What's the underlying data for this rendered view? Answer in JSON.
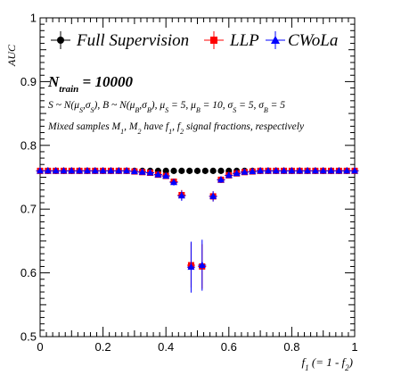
{
  "chart_data": {
    "type": "scatter",
    "title": "",
    "xlabel": "f_1 (= 1 - f_2)",
    "ylabel": "AUC",
    "xlim": [
      0,
      1
    ],
    "ylim": [
      0.5,
      1.0
    ],
    "x_ticks": [
      "0",
      "0.2",
      "0.4",
      "0.6",
      "0.8",
      "1"
    ],
    "y_ticks": [
      "0.5",
      "0.6",
      "0.7",
      "0.8",
      "0.9",
      "1"
    ],
    "grid": false,
    "legend_position": "top",
    "annotations": {
      "n_train": "N_train = 10000",
      "model": "S ~ N(μ_S,σ_S), B ~ N(μ_B,σ_B), μ_S = 5, μ_B = 10, σ_S = 5, σ_B = 5",
      "mixed": "Mixed samples M_1, M_2 have f_1, f_2 signal fractions, respectively"
    },
    "x": [
      0.0,
      0.0333,
      0.0667,
      0.1,
      0.1333,
      0.1667,
      0.2,
      0.2333,
      0.2667,
      0.3,
      0.3333,
      0.3667,
      0.4,
      0.4333,
      0.4667,
      0.5,
      0.5333,
      0.5667,
      0.6,
      0.6333,
      0.6667,
      0.7,
      0.7333,
      0.7667,
      0.8,
      0.8333,
      0.8667,
      0.9,
      0.9333,
      0.9667,
      1.0
    ],
    "series": [
      {
        "name": "Full Supervision",
        "color": "#000000",
        "marker": "circle",
        "points": [
          {
            "x": 0.0,
            "y": 0.76
          },
          {
            "x": 0.025,
            "y": 0.76
          },
          {
            "x": 0.05,
            "y": 0.76
          },
          {
            "x": 0.075,
            "y": 0.76
          },
          {
            "x": 0.1,
            "y": 0.76
          },
          {
            "x": 0.125,
            "y": 0.76
          },
          {
            "x": 0.15,
            "y": 0.76
          },
          {
            "x": 0.175,
            "y": 0.76
          },
          {
            "x": 0.2,
            "y": 0.76
          },
          {
            "x": 0.225,
            "y": 0.76
          },
          {
            "x": 0.25,
            "y": 0.76
          },
          {
            "x": 0.275,
            "y": 0.76
          },
          {
            "x": 0.3,
            "y": 0.76
          },
          {
            "x": 0.325,
            "y": 0.76
          },
          {
            "x": 0.35,
            "y": 0.76
          },
          {
            "x": 0.375,
            "y": 0.76
          },
          {
            "x": 0.4,
            "y": 0.76
          },
          {
            "x": 0.425,
            "y": 0.76
          },
          {
            "x": 0.45,
            "y": 0.76
          },
          {
            "x": 0.475,
            "y": 0.76
          },
          {
            "x": 0.5,
            "y": 0.76
          },
          {
            "x": 0.525,
            "y": 0.76
          },
          {
            "x": 0.55,
            "y": 0.76
          },
          {
            "x": 0.575,
            "y": 0.76
          },
          {
            "x": 0.6,
            "y": 0.76
          },
          {
            "x": 0.625,
            "y": 0.76
          },
          {
            "x": 0.65,
            "y": 0.76
          },
          {
            "x": 0.675,
            "y": 0.76
          },
          {
            "x": 0.7,
            "y": 0.76
          },
          {
            "x": 0.725,
            "y": 0.76
          },
          {
            "x": 0.75,
            "y": 0.76
          },
          {
            "x": 0.775,
            "y": 0.76
          },
          {
            "x": 0.8,
            "y": 0.76
          },
          {
            "x": 0.825,
            "y": 0.76
          },
          {
            "x": 0.85,
            "y": 0.76
          },
          {
            "x": 0.875,
            "y": 0.76
          },
          {
            "x": 0.9,
            "y": 0.76
          },
          {
            "x": 0.925,
            "y": 0.76
          },
          {
            "x": 0.95,
            "y": 0.76
          },
          {
            "x": 0.975,
            "y": 0.76
          },
          {
            "x": 1.0,
            "y": 0.76
          }
        ]
      },
      {
        "name": "LLP",
        "color": "#ff0000",
        "marker": "square",
        "points": [
          {
            "x": 0.0,
            "y": 0.76,
            "err": 0.003
          },
          {
            "x": 0.025,
            "y": 0.76,
            "err": 0.003
          },
          {
            "x": 0.05,
            "y": 0.76,
            "err": 0.003
          },
          {
            "x": 0.075,
            "y": 0.76,
            "err": 0.003
          },
          {
            "x": 0.1,
            "y": 0.76,
            "err": 0.003
          },
          {
            "x": 0.125,
            "y": 0.76,
            "err": 0.003
          },
          {
            "x": 0.15,
            "y": 0.76,
            "err": 0.003
          },
          {
            "x": 0.175,
            "y": 0.76,
            "err": 0.003
          },
          {
            "x": 0.2,
            "y": 0.76,
            "err": 0.003
          },
          {
            "x": 0.225,
            "y": 0.76,
            "err": 0.003
          },
          {
            "x": 0.25,
            "y": 0.76,
            "err": 0.003
          },
          {
            "x": 0.275,
            "y": 0.76,
            "err": 0.003
          },
          {
            "x": 0.3,
            "y": 0.759,
            "err": 0.003
          },
          {
            "x": 0.325,
            "y": 0.758,
            "err": 0.003
          },
          {
            "x": 0.35,
            "y": 0.757,
            "err": 0.003
          },
          {
            "x": 0.375,
            "y": 0.754,
            "err": 0.004
          },
          {
            "x": 0.4,
            "y": 0.752,
            "err": 0.004
          },
          {
            "x": 0.425,
            "y": 0.743,
            "err": 0.005
          },
          {
            "x": 0.45,
            "y": 0.722,
            "err": 0.008
          },
          {
            "x": 0.48,
            "y": 0.612,
            "err": 0.035
          },
          {
            "x": 0.515,
            "y": 0.61,
            "err": 0.035
          },
          {
            "x": 0.55,
            "y": 0.72,
            "err": 0.008
          },
          {
            "x": 0.575,
            "y": 0.746,
            "err": 0.005
          },
          {
            "x": 0.6,
            "y": 0.753,
            "err": 0.004
          },
          {
            "x": 0.625,
            "y": 0.756,
            "err": 0.004
          },
          {
            "x": 0.65,
            "y": 0.758,
            "err": 0.003
          },
          {
            "x": 0.675,
            "y": 0.759,
            "err": 0.003
          },
          {
            "x": 0.7,
            "y": 0.76,
            "err": 0.003
          },
          {
            "x": 0.725,
            "y": 0.76,
            "err": 0.003
          },
          {
            "x": 0.75,
            "y": 0.76,
            "err": 0.003
          },
          {
            "x": 0.775,
            "y": 0.76,
            "err": 0.003
          },
          {
            "x": 0.8,
            "y": 0.76,
            "err": 0.003
          },
          {
            "x": 0.825,
            "y": 0.76,
            "err": 0.003
          },
          {
            "x": 0.85,
            "y": 0.76,
            "err": 0.003
          },
          {
            "x": 0.875,
            "y": 0.76,
            "err": 0.003
          },
          {
            "x": 0.9,
            "y": 0.76,
            "err": 0.003
          },
          {
            "x": 0.925,
            "y": 0.76,
            "err": 0.003
          },
          {
            "x": 0.95,
            "y": 0.76,
            "err": 0.003
          },
          {
            "x": 0.975,
            "y": 0.76,
            "err": 0.003
          },
          {
            "x": 1.0,
            "y": 0.76,
            "err": 0.003
          }
        ]
      },
      {
        "name": "CWoLa",
        "color": "#0000ff",
        "marker": "triangle",
        "points": [
          {
            "x": 0.0,
            "y": 0.76,
            "err": 0.003
          },
          {
            "x": 0.025,
            "y": 0.76,
            "err": 0.003
          },
          {
            "x": 0.05,
            "y": 0.76,
            "err": 0.003
          },
          {
            "x": 0.075,
            "y": 0.76,
            "err": 0.003
          },
          {
            "x": 0.1,
            "y": 0.76,
            "err": 0.003
          },
          {
            "x": 0.125,
            "y": 0.76,
            "err": 0.003
          },
          {
            "x": 0.15,
            "y": 0.76,
            "err": 0.003
          },
          {
            "x": 0.175,
            "y": 0.76,
            "err": 0.003
          },
          {
            "x": 0.2,
            "y": 0.76,
            "err": 0.003
          },
          {
            "x": 0.225,
            "y": 0.76,
            "err": 0.003
          },
          {
            "x": 0.25,
            "y": 0.76,
            "err": 0.003
          },
          {
            "x": 0.275,
            "y": 0.76,
            "err": 0.003
          },
          {
            "x": 0.3,
            "y": 0.759,
            "err": 0.003
          },
          {
            "x": 0.325,
            "y": 0.758,
            "err": 0.003
          },
          {
            "x": 0.35,
            "y": 0.757,
            "err": 0.003
          },
          {
            "x": 0.375,
            "y": 0.754,
            "err": 0.004
          },
          {
            "x": 0.4,
            "y": 0.752,
            "err": 0.004
          },
          {
            "x": 0.425,
            "y": 0.742,
            "err": 0.005
          },
          {
            "x": 0.45,
            "y": 0.721,
            "err": 0.008
          },
          {
            "x": 0.48,
            "y": 0.609,
            "err": 0.04
          },
          {
            "x": 0.515,
            "y": 0.612,
            "err": 0.04
          },
          {
            "x": 0.55,
            "y": 0.72,
            "err": 0.008
          },
          {
            "x": 0.575,
            "y": 0.746,
            "err": 0.005
          },
          {
            "x": 0.6,
            "y": 0.753,
            "err": 0.004
          },
          {
            "x": 0.625,
            "y": 0.756,
            "err": 0.004
          },
          {
            "x": 0.65,
            "y": 0.758,
            "err": 0.003
          },
          {
            "x": 0.675,
            "y": 0.759,
            "err": 0.003
          },
          {
            "x": 0.7,
            "y": 0.76,
            "err": 0.003
          },
          {
            "x": 0.725,
            "y": 0.76,
            "err": 0.003
          },
          {
            "x": 0.75,
            "y": 0.76,
            "err": 0.003
          },
          {
            "x": 0.775,
            "y": 0.76,
            "err": 0.003
          },
          {
            "x": 0.8,
            "y": 0.76,
            "err": 0.003
          },
          {
            "x": 0.825,
            "y": 0.76,
            "err": 0.003
          },
          {
            "x": 0.85,
            "y": 0.76,
            "err": 0.003
          },
          {
            "x": 0.875,
            "y": 0.76,
            "err": 0.003
          },
          {
            "x": 0.9,
            "y": 0.76,
            "err": 0.003
          },
          {
            "x": 0.925,
            "y": 0.76,
            "err": 0.003
          },
          {
            "x": 0.95,
            "y": 0.76,
            "err": 0.003
          },
          {
            "x": 0.975,
            "y": 0.76,
            "err": 0.003
          },
          {
            "x": 1.0,
            "y": 0.76,
            "err": 0.003
          }
        ]
      }
    ]
  }
}
